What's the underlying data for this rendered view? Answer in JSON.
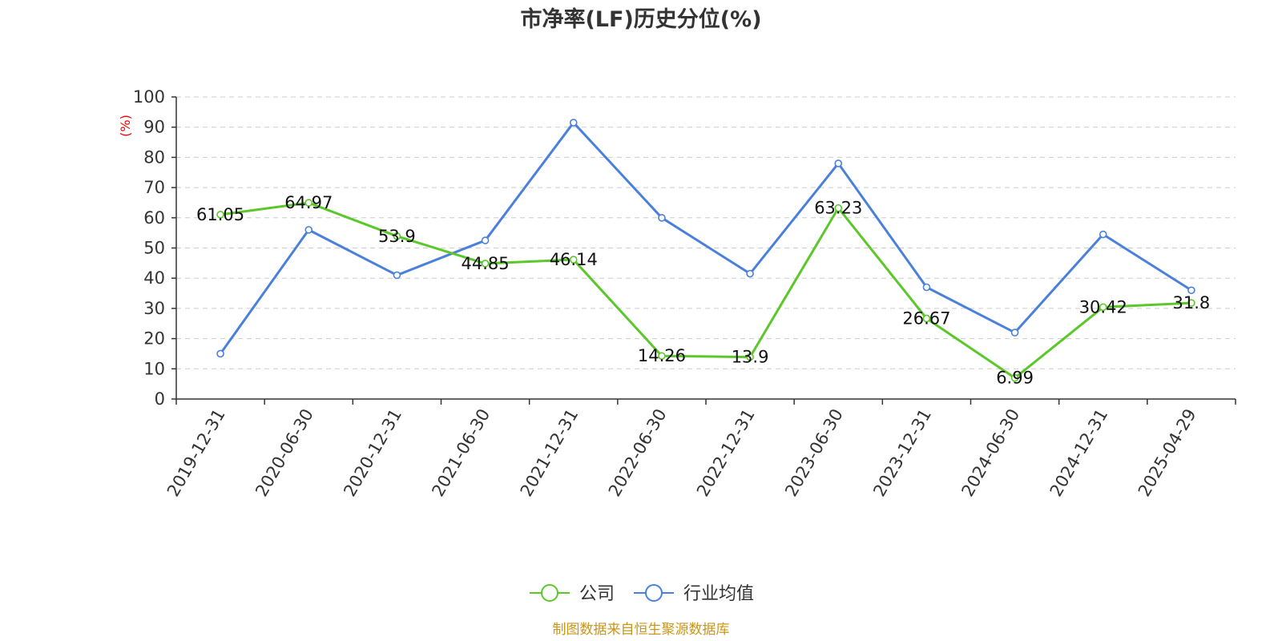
{
  "chart_data": {
    "type": "line",
    "title": "市净率(LF)历史分位(%)",
    "ylabel": "(%)",
    "ylim": [
      0,
      100
    ],
    "y_ticks": [
      0,
      10,
      20,
      30,
      40,
      50,
      60,
      70,
      80,
      90,
      100
    ],
    "grid": true,
    "legend_position": "bottom-center",
    "categories": [
      "2019-12-31",
      "2020-06-30",
      "2020-12-31",
      "2021-06-30",
      "2021-12-31",
      "2022-06-30",
      "2022-12-31",
      "2023-06-30",
      "2023-12-31",
      "2024-06-30",
      "2024-12-31",
      "2025-04-29"
    ],
    "series": [
      {
        "name": "公司",
        "color": "#5cc72a",
        "values": [
          61.05,
          64.97,
          53.9,
          44.85,
          46.14,
          14.26,
          13.9,
          63.23,
          26.67,
          6.99,
          30.42,
          31.8
        ],
        "labels": [
          "61.05",
          "64.97",
          "53.9",
          "44.85",
          "46.14",
          "14.26",
          "13.9",
          "63.23",
          "26.67",
          "6.99",
          "30.42",
          "31.8"
        ]
      },
      {
        "name": "行业均值",
        "color": "#4a80dc",
        "values": [
          15,
          56,
          41,
          52.5,
          91.5,
          60,
          41.5,
          78,
          37,
          22,
          54.5,
          36
        ]
      }
    ],
    "source_note": "制图数据来自恒生聚源数据库"
  }
}
